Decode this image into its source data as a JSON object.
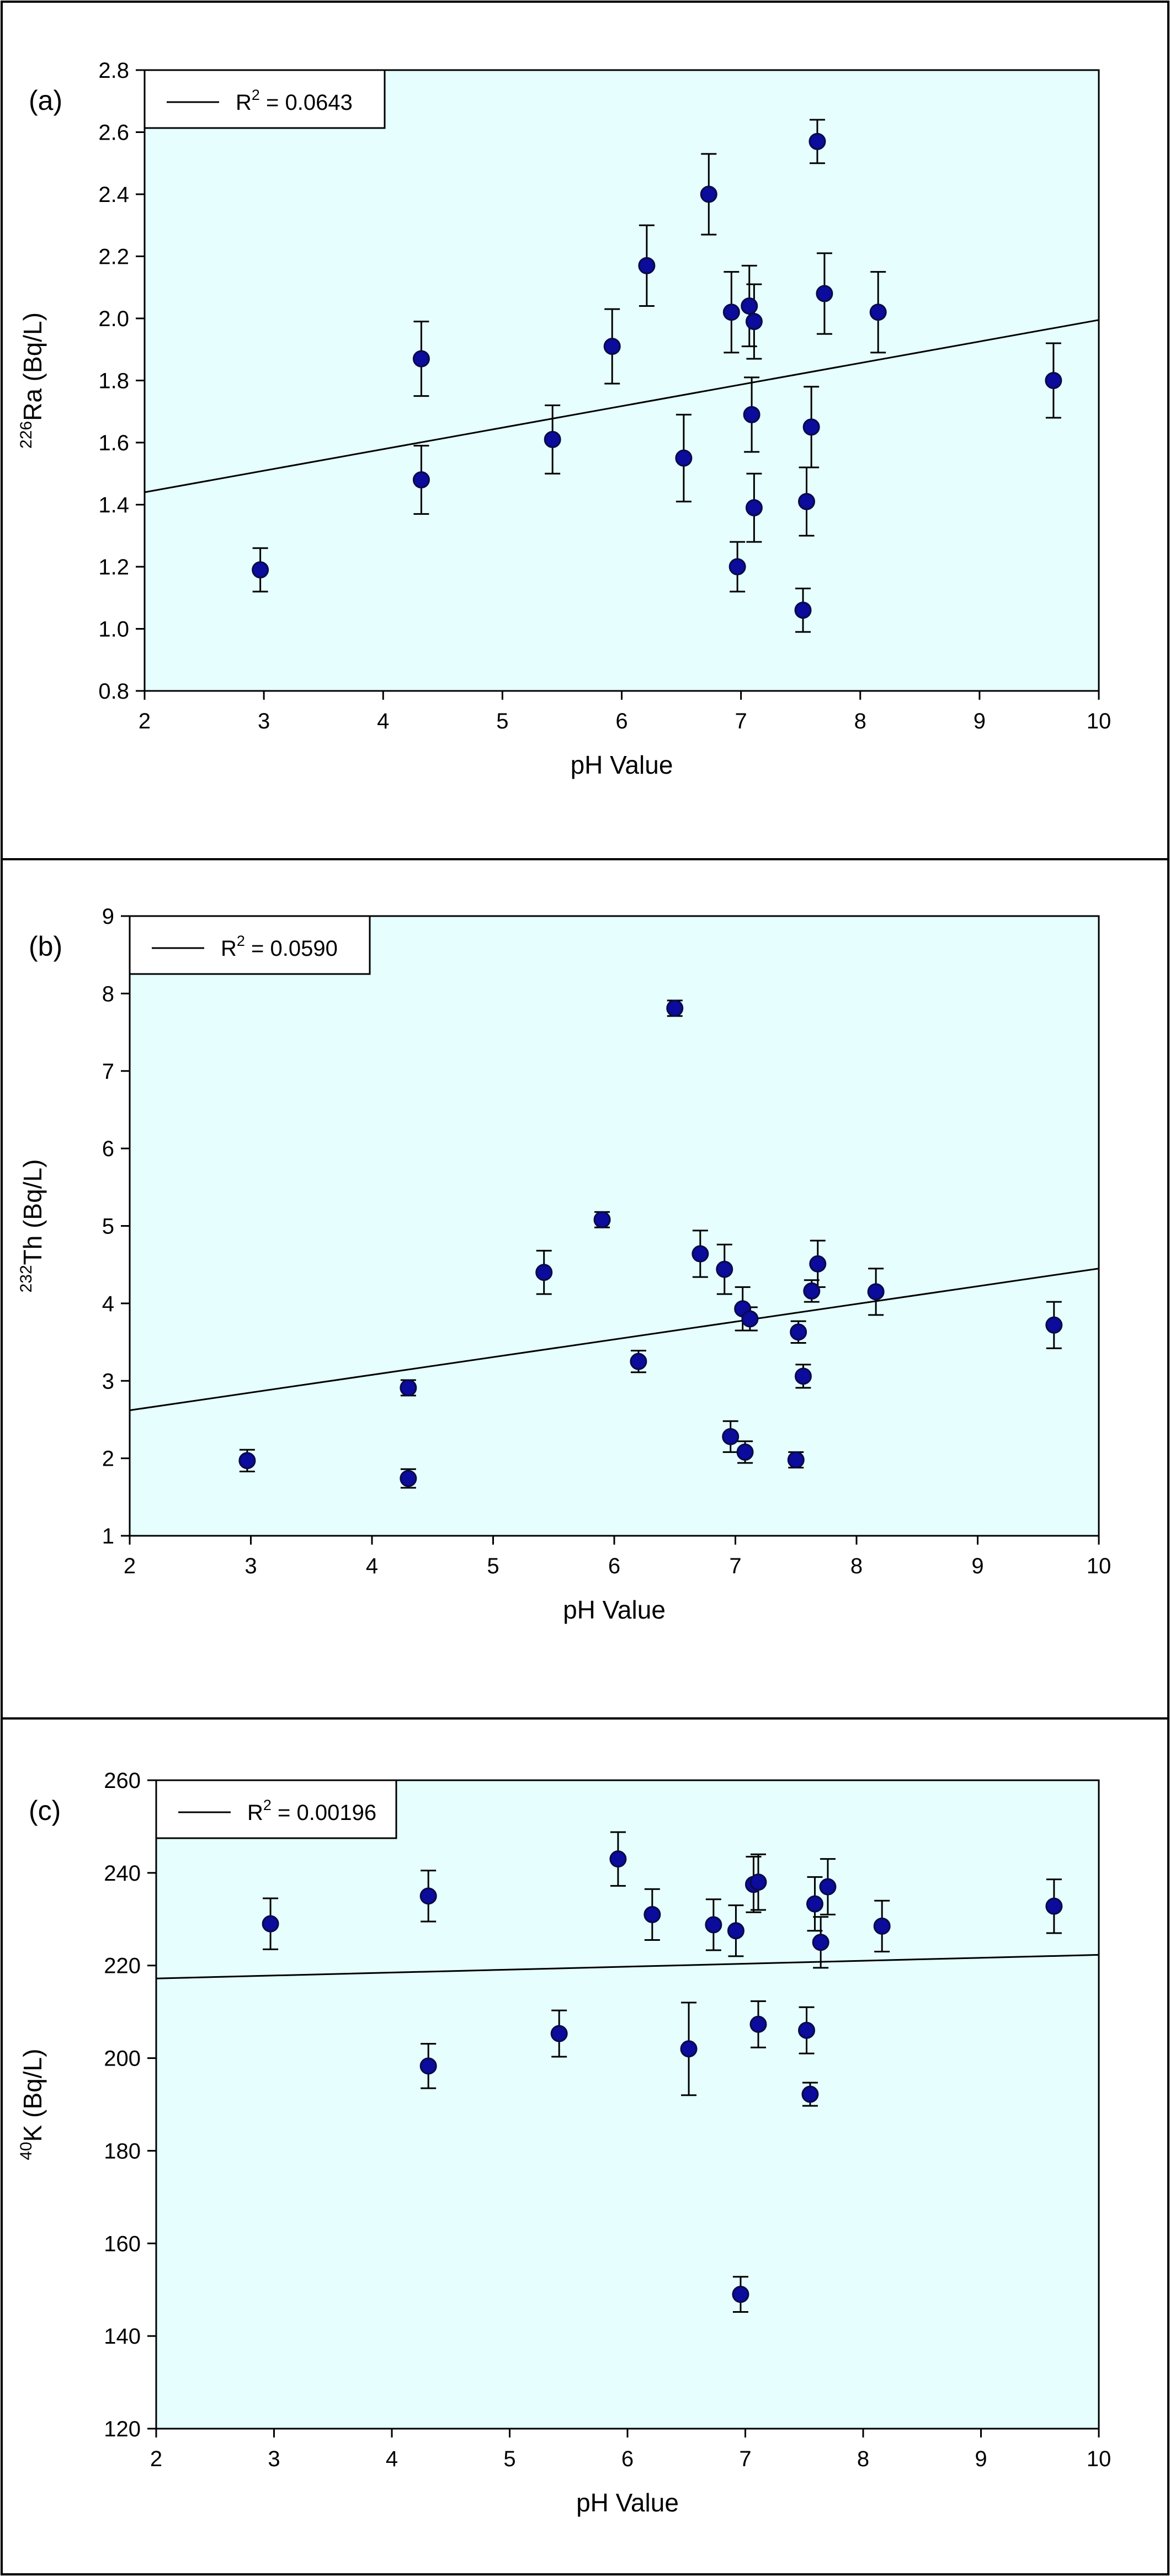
{
  "chart_data": [
    {
      "type": "scatter",
      "panel_label": "(a)",
      "xlabel": "pH Value",
      "ylabel_sup": "226",
      "ylabel_main": "Ra (Bq/L)",
      "xlim": [
        2,
        10
      ],
      "ylim": [
        0.8,
        2.8
      ],
      "xticks": [
        "2",
        "3",
        "4",
        "5",
        "6",
        "7",
        "8",
        "9",
        "10"
      ],
      "yticks": [
        "0.8",
        "1.0",
        "1.2",
        "1.4",
        "1.6",
        "1.8",
        "2.0",
        "2.2",
        "2.4",
        "2.6",
        "2.8"
      ],
      "legend": {
        "line_label": "R",
        "sup": "2",
        "value": " = 0.0643",
        "placement": "top-left"
      },
      "trendline": {
        "x": [
          2,
          10
        ],
        "y": [
          1.44,
          1.995
        ]
      },
      "points": [
        {
          "x": 2.97,
          "y": 1.19,
          "err": 0.07
        },
        {
          "x": 4.32,
          "y": 1.87,
          "err": 0.12
        },
        {
          "x": 4.32,
          "y": 1.48,
          "err": 0.11
        },
        {
          "x": 5.42,
          "y": 1.61,
          "err": 0.11
        },
        {
          "x": 5.92,
          "y": 1.91,
          "err": 0.12
        },
        {
          "x": 6.21,
          "y": 2.17,
          "err": 0.13
        },
        {
          "x": 6.52,
          "y": 1.55,
          "err": 0.14
        },
        {
          "x": 6.73,
          "y": 2.4,
          "err": 0.13
        },
        {
          "x": 6.92,
          "y": 2.02,
          "err": 0.13
        },
        {
          "x": 6.97,
          "y": 1.2,
          "err": 0.08
        },
        {
          "x": 7.07,
          "y": 2.04,
          "err": 0.13
        },
        {
          "x": 7.11,
          "y": 1.99,
          "err": 0.12
        },
        {
          "x": 7.09,
          "y": 1.69,
          "err": 0.12
        },
        {
          "x": 7.11,
          "y": 1.39,
          "err": 0.11
        },
        {
          "x": 7.52,
          "y": 1.06,
          "err": 0.07
        },
        {
          "x": 7.55,
          "y": 1.41,
          "err": 0.11
        },
        {
          "x": 7.59,
          "y": 1.65,
          "err": 0.13
        },
        {
          "x": 7.64,
          "y": 2.57,
          "err": 0.07
        },
        {
          "x": 7.7,
          "y": 2.08,
          "err": 0.13
        },
        {
          "x": 8.15,
          "y": 2.02,
          "err": 0.13
        },
        {
          "x": 9.62,
          "y": 1.8,
          "err": 0.12
        }
      ]
    },
    {
      "type": "scatter",
      "panel_label": "(b)",
      "xlabel": "pH Value",
      "ylabel_sup": "232",
      "ylabel_main": "Th (Bq/L)",
      "xlim": [
        2,
        10
      ],
      "ylim": [
        1,
        9
      ],
      "xticks": [
        "2",
        "3",
        "4",
        "5",
        "6",
        "7",
        "8",
        "9",
        "10"
      ],
      "yticks": [
        "1",
        "2",
        "3",
        "4",
        "5",
        "6",
        "7",
        "8",
        "9"
      ],
      "legend": {
        "line_label": "R",
        "sup": "2",
        "value": " = 0.0590",
        "placement": "top-left"
      },
      "trendline": {
        "x": [
          2,
          10
        ],
        "y": [
          2.62,
          4.45
        ]
      },
      "points": [
        {
          "x": 2.97,
          "y": 1.97,
          "err": 0.14
        },
        {
          "x": 4.3,
          "y": 2.91,
          "err": 0.1
        },
        {
          "x": 4.3,
          "y": 1.74,
          "err": 0.12
        },
        {
          "x": 5.42,
          "y": 4.4,
          "err": 0.28
        },
        {
          "x": 5.9,
          "y": 5.08,
          "err": 0.1
        },
        {
          "x": 6.2,
          "y": 3.25,
          "err": 0.14
        },
        {
          "x": 6.5,
          "y": 7.81,
          "err": 0.1
        },
        {
          "x": 6.71,
          "y": 4.64,
          "err": 0.3
        },
        {
          "x": 6.91,
          "y": 4.44,
          "err": 0.32
        },
        {
          "x": 6.96,
          "y": 2.28,
          "err": 0.2
        },
        {
          "x": 7.06,
          "y": 3.93,
          "err": 0.28
        },
        {
          "x": 7.08,
          "y": 2.08,
          "err": 0.14
        },
        {
          "x": 7.12,
          "y": 3.8,
          "err": 0.15
        },
        {
          "x": 7.5,
          "y": 1.98,
          "err": 0.1
        },
        {
          "x": 7.52,
          "y": 3.63,
          "err": 0.14
        },
        {
          "x": 7.56,
          "y": 3.06,
          "err": 0.15
        },
        {
          "x": 7.63,
          "y": 4.16,
          "err": 0.14
        },
        {
          "x": 7.68,
          "y": 4.51,
          "err": 0.3
        },
        {
          "x": 8.16,
          "y": 4.15,
          "err": 0.3
        },
        {
          "x": 9.63,
          "y": 3.72,
          "err": 0.3
        }
      ]
    },
    {
      "type": "scatter",
      "panel_label": "(c)",
      "xlabel": "pH Value",
      "ylabel_sup": "40",
      "ylabel_main": "K (Bq/L)",
      "xlim": [
        2,
        10
      ],
      "ylim": [
        120,
        260
      ],
      "xticks": [
        "2",
        "3",
        "4",
        "5",
        "6",
        "7",
        "8",
        "9",
        "10"
      ],
      "yticks": [
        "120",
        "140",
        "160",
        "180",
        "200",
        "220",
        "240",
        "260"
      ],
      "legend": {
        "line_label": "R",
        "sup": "2",
        "value": " = 0.00196",
        "placement": "top-left"
      },
      "trendline": {
        "x": [
          2,
          10
        ],
        "y": [
          217.2,
          222.3
        ]
      },
      "points": [
        {
          "x": 2.97,
          "y": 229.0,
          "err": 5.5
        },
        {
          "x": 4.31,
          "y": 235.0,
          "err": 5.5
        },
        {
          "x": 4.31,
          "y": 198.3,
          "err": 4.8
        },
        {
          "x": 5.42,
          "y": 205.3,
          "err": 5.0
        },
        {
          "x": 5.92,
          "y": 243.0,
          "err": 5.8
        },
        {
          "x": 6.21,
          "y": 231.0,
          "err": 5.5
        },
        {
          "x": 6.52,
          "y": 202.0,
          "err": 10.0
        },
        {
          "x": 6.73,
          "y": 228.8,
          "err": 5.5
        },
        {
          "x": 6.92,
          "y": 227.5,
          "err": 5.5
        },
        {
          "x": 6.96,
          "y": 149.0,
          "err": 3.8
        },
        {
          "x": 7.07,
          "y": 237.5,
          "err": 6.0
        },
        {
          "x": 7.11,
          "y": 238.0,
          "err": 6.0
        },
        {
          "x": 7.11,
          "y": 207.3,
          "err": 5.0
        },
        {
          "x": 7.52,
          "y": 206.0,
          "err": 5.0
        },
        {
          "x": 7.55,
          "y": 192.2,
          "err": 2.5
        },
        {
          "x": 7.59,
          "y": 233.3,
          "err": 5.8
        },
        {
          "x": 7.64,
          "y": 225.0,
          "err": 5.5
        },
        {
          "x": 7.7,
          "y": 237.0,
          "err": 6.0
        },
        {
          "x": 8.16,
          "y": 228.5,
          "err": 5.5
        },
        {
          "x": 9.62,
          "y": 232.8,
          "err": 5.8
        }
      ]
    }
  ]
}
